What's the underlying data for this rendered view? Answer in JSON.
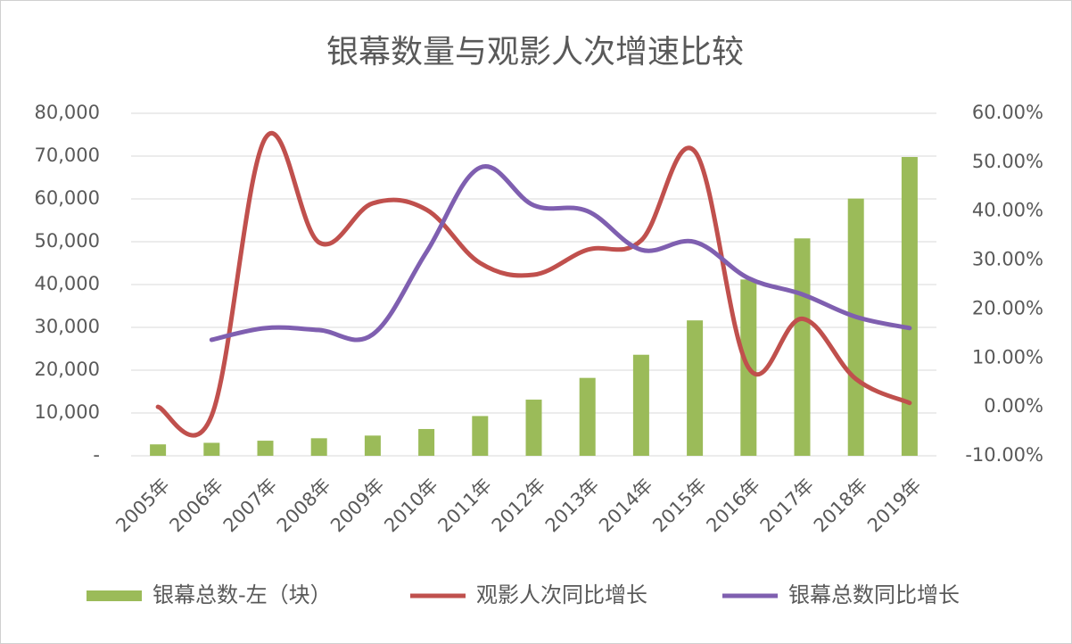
{
  "chart_data": {
    "type": "bar-line",
    "title": "银幕数量与观影人次增速比较",
    "categories": [
      "2005年",
      "2006年",
      "2007年",
      "2008年",
      "2009年",
      "2010年",
      "2011年",
      "2012年",
      "2013年",
      "2014年",
      "2015年",
      "2016年",
      "2017年",
      "2018年",
      "2019年"
    ],
    "series": [
      {
        "name": "银幕总数-左（块）",
        "color": "#9bbb59",
        "kind": "bar",
        "axis": "y",
        "values": [
          2668,
          3034,
          3527,
          4097,
          4723,
          6256,
          9286,
          13118,
          18195,
          23600,
          31627,
          41179,
          50776,
          60079,
          69787
        ]
      },
      {
        "name": "观影人次同比增长",
        "color": "#c0504d",
        "kind": "line",
        "axis": "y2",
        "values": [
          0,
          -1.8,
          54.9,
          33.6,
          41.6,
          40.3,
          29.4,
          27,
          32.1,
          34,
          52.2,
          8,
          18,
          5.7,
          0.8
        ]
      },
      {
        "name": "银幕总数同比增长",
        "color": "#7f5fb0",
        "kind": "line",
        "axis": "y2",
        "values": [
          null,
          13.7,
          16.1,
          15.7,
          14.8,
          31.6,
          48.9,
          41.2,
          40,
          32.1,
          33.7,
          26.3,
          23,
          18.4,
          16.1
        ]
      }
    ],
    "ylim": [
      0,
      80000
    ],
    "yticks": [
      {
        "value": 0,
        "label": "-"
      },
      {
        "value": 10000,
        "label": "10,000"
      },
      {
        "value": 20000,
        "label": "20,000"
      },
      {
        "value": 30000,
        "label": "30,000"
      },
      {
        "value": 40000,
        "label": "40,000"
      },
      {
        "value": 50000,
        "label": "50,000"
      },
      {
        "value": 60000,
        "label": "60,000"
      },
      {
        "value": 70000,
        "label": "70,000"
      },
      {
        "value": 80000,
        "label": "80,000"
      }
    ],
    "y2lim": [
      -10,
      60
    ],
    "y2ticks": [
      {
        "value": -10,
        "label": "-10.00%"
      },
      {
        "value": 0,
        "label": "0.00%"
      },
      {
        "value": 10,
        "label": "10.00%"
      },
      {
        "value": 20,
        "label": "20.00%"
      },
      {
        "value": 30,
        "label": "30.00%"
      },
      {
        "value": 40,
        "label": "40.00%"
      },
      {
        "value": 50,
        "label": "50.00%"
      },
      {
        "value": 60,
        "label": "60.00%"
      }
    ],
    "grid": true,
    "legend": "bottom"
  }
}
